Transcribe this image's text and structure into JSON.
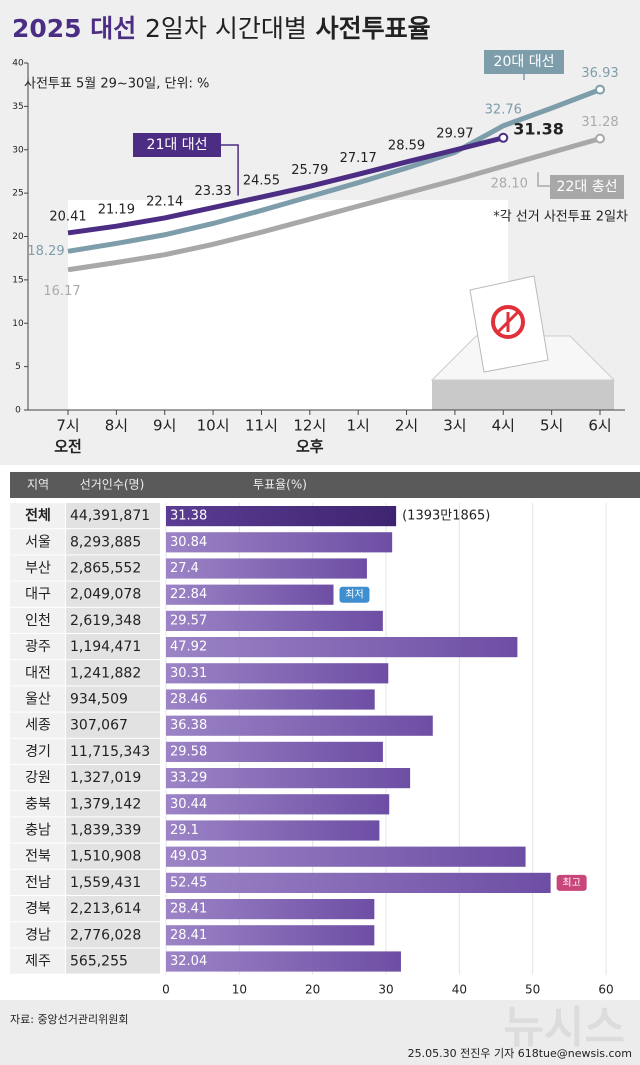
{
  "header": {
    "title": [
      "2025 대선",
      "2일차 시간대별",
      "사전투표율"
    ]
  },
  "chart_data": [
    {
      "type": "line",
      "subtitle": "사전투표 5월 29~30일, 단위: %",
      "note": "*각 선거 사전투표 2일차",
      "categories": [
        "7시",
        "8시",
        "9시",
        "10시",
        "11시",
        "12시",
        "1시",
        "2시",
        "3시",
        "4시",
        "5시",
        "6시"
      ],
      "period_labels": [
        "오전",
        "오후"
      ],
      "ylim": [
        0,
        40
      ],
      "yticks": [
        0,
        5,
        10,
        15,
        20,
        25,
        30,
        35,
        40
      ],
      "series": [
        {
          "name": "21대 대선",
          "color": "#4b2d83",
          "values": [
            20.41,
            21.19,
            22.14,
            23.33,
            24.55,
            25.79,
            27.17,
            28.59,
            29.97,
            31.38,
            null,
            null
          ]
        },
        {
          "name": "20대 대선",
          "color": "#7d9dab",
          "values": [
            18.29,
            19.2,
            20.2,
            21.5,
            23.0,
            24.6,
            26.2,
            27.9,
            29.7,
            32.76,
            34.8,
            36.93
          ],
          "value_labels": [
            "18.29",
            null,
            null,
            null,
            null,
            null,
            null,
            null,
            null,
            "32.76",
            null,
            "36.93"
          ]
        },
        {
          "name": "22대 총선",
          "color": "#a8a8a8",
          "values": [
            16.17,
            17.0,
            17.9,
            19.1,
            20.5,
            22.0,
            23.5,
            25.0,
            26.5,
            28.1,
            29.7,
            31.28
          ],
          "value_labels": [
            "16.17",
            null,
            null,
            null,
            null,
            null,
            null,
            null,
            null,
            "28.10",
            null,
            "31.28"
          ]
        }
      ]
    },
    {
      "type": "bar",
      "orientation": "horizontal",
      "headers": [
        "지역",
        "선거인수(명)",
        "투표율(%)"
      ],
      "categories": [
        "전체",
        "서울",
        "부산",
        "대구",
        "인천",
        "광주",
        "대전",
        "울산",
        "세종",
        "경기",
        "강원",
        "충북",
        "충남",
        "전북",
        "전남",
        "경북",
        "경남",
        "제주"
      ],
      "electorate": [
        "44,391,871",
        "8,293,885",
        "2,865,552",
        "2,049,078",
        "2,619,348",
        "1,194,471",
        "1,241,882",
        "934,509",
        "307,067",
        "11,715,343",
        "1,327,019",
        "1,379,142",
        "1,839,339",
        "1,510,908",
        "1,559,431",
        "2,213,614",
        "2,776,028",
        "565,255"
      ],
      "values": [
        31.38,
        30.84,
        27.4,
        22.84,
        29.57,
        47.92,
        30.31,
        28.46,
        36.38,
        29.58,
        33.29,
        30.44,
        29.1,
        49.03,
        52.45,
        28.41,
        28.41,
        32.04
      ],
      "notes": [
        "(1393만1865)",
        null,
        null,
        "최저",
        null,
        null,
        null,
        null,
        null,
        null,
        null,
        null,
        null,
        null,
        "최고",
        null,
        null,
        null
      ],
      "xlim": [
        0,
        60
      ],
      "xticks": [
        0,
        10,
        20,
        30,
        40,
        50,
        60
      ]
    }
  ],
  "footer": {
    "source": "자료: 중앙선거관리위원회",
    "credit": "25.05.30 전진우 기자 618tue@newsis.com",
    "watermark": "뉴시스"
  }
}
